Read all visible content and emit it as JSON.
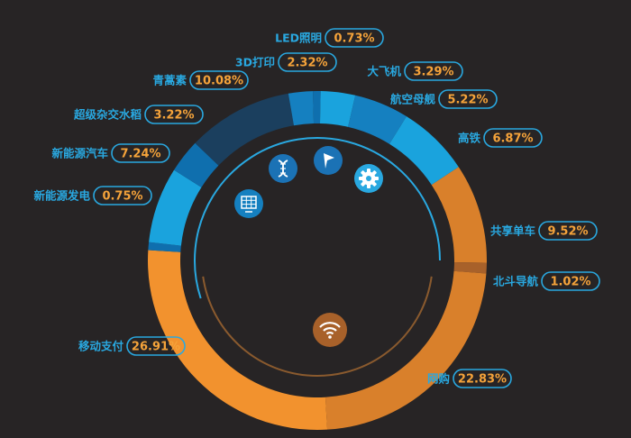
{
  "chart_data": {
    "type": "pie",
    "title": "",
    "categories": [
      "LED照明",
      "大飞机",
      "航空母舰",
      "高铁",
      "共享单车",
      "北斗导航",
      "网购",
      "移动支付",
      "新能源发电",
      "新能源汽车",
      "超级杂交水稻",
      "青蒿素",
      "3D打印"
    ],
    "values": [
      0.73,
      3.29,
      5.22,
      6.87,
      9.52,
      1.02,
      22.83,
      26.91,
      0.75,
      7.24,
      3.22,
      10.08,
      2.32
    ],
    "value_labels": [
      "0.73%",
      "3.29%",
      "5.22%",
      "6.87%",
      "9.52%",
      "1.02%",
      "22.83%",
      "26.91%",
      "0.75%",
      "7.24%",
      "3.22%",
      "10.08%",
      "2.32%"
    ],
    "unit": "%",
    "colors": [
      "#0f6fae",
      "#1aa3dd",
      "#1580c0",
      "#1aa3dd",
      "#d9802b",
      "#a8612a",
      "#d9802b",
      "#f2922e",
      "#0f6fae",
      "#1aa3dd",
      "#0f6fae",
      "#1b3f5e",
      "#1580c0"
    ],
    "style": "donut",
    "legend": "labels-around"
  },
  "icons": [
    "dna-icon",
    "arrow-icon",
    "gear-icon",
    "solar-panel-icon",
    "wifi-icon"
  ]
}
